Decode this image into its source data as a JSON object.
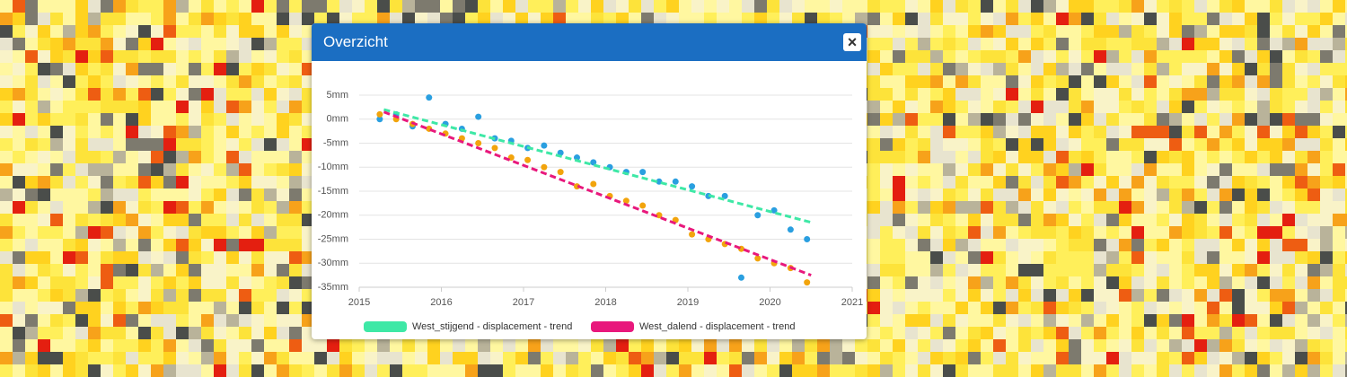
{
  "popup": {
    "title": "Overzicht",
    "close": "×"
  },
  "chart_data": {
    "type": "scatter",
    "xlim": [
      2015,
      2021
    ],
    "xticks": [
      2015,
      2016,
      2017,
      2018,
      2019,
      2020,
      2021
    ],
    "ylim": [
      -35,
      5
    ],
    "yticks": [
      {
        "value": -35,
        "label": "-35mm"
      },
      {
        "value": -30,
        "label": "-30mm"
      },
      {
        "value": -25,
        "label": "-25mm"
      },
      {
        "value": -20,
        "label": "-20mm"
      },
      {
        "value": -15,
        "label": "-15mm"
      },
      {
        "value": -10,
        "label": "-10mm"
      },
      {
        "value": -5,
        "label": "-5mm"
      },
      {
        "value": 0,
        "label": "0mm"
      },
      {
        "value": 5,
        "label": "5mm"
      }
    ],
    "grid": true,
    "series": [
      {
        "name": "West_stijgend - displacement - trend",
        "color": "#3ee8a6",
        "mode": "line",
        "x": [
          2015.3,
          2020.5
        ],
        "values": [
          2,
          -21.5
        ]
      },
      {
        "name": "West_dalend - displacement - trend",
        "color": "#e8187c",
        "mode": "line",
        "x": [
          2015.3,
          2020.5
        ],
        "values": [
          1.5,
          -32.5
        ]
      },
      {
        "name": "West_stijgend - displacement",
        "color": "#2a9fe0",
        "mode": "markers",
        "x": [
          2015.25,
          2015.45,
          2015.65,
          2015.85,
          2016.05,
          2016.25,
          2016.45,
          2016.65,
          2016.85,
          2017.05,
          2017.25,
          2017.45,
          2017.65,
          2017.85,
          2018.05,
          2018.25,
          2018.45,
          2018.65,
          2018.85,
          2019.05,
          2019.25,
          2019.45,
          2019.65,
          2019.85,
          2020.05,
          2020.25,
          2020.45
        ],
        "values": [
          0,
          1,
          -1.5,
          4.5,
          -1,
          -2,
          0.5,
          -4,
          -4.5,
          -6,
          -5.5,
          -7,
          -8,
          -9,
          -10,
          -11,
          -11,
          -13,
          -13,
          -14,
          -16,
          -16,
          -33,
          -20,
          -19,
          -23,
          -25
        ]
      },
      {
        "name": "West_dalend - displacement",
        "color": "#f2a40c",
        "mode": "markers",
        "x": [
          2015.25,
          2015.45,
          2015.65,
          2015.85,
          2016.05,
          2016.25,
          2016.45,
          2016.65,
          2016.85,
          2017.05,
          2017.25,
          2017.45,
          2017.65,
          2017.85,
          2018.05,
          2018.25,
          2018.45,
          2018.65,
          2018.85,
          2019.05,
          2019.25,
          2019.45,
          2019.65,
          2019.85,
          2020.05,
          2020.25,
          2020.45
        ],
        "values": [
          1,
          0,
          -1,
          -2,
          -3,
          -4,
          -5,
          -6,
          -8,
          -8.5,
          -10,
          -11,
          -14,
          -13.5,
          -16,
          -17,
          -18,
          -20,
          -21,
          -24,
          -25,
          -26,
          -27,
          -29,
          -30,
          -31,
          -34
        ]
      }
    ]
  }
}
